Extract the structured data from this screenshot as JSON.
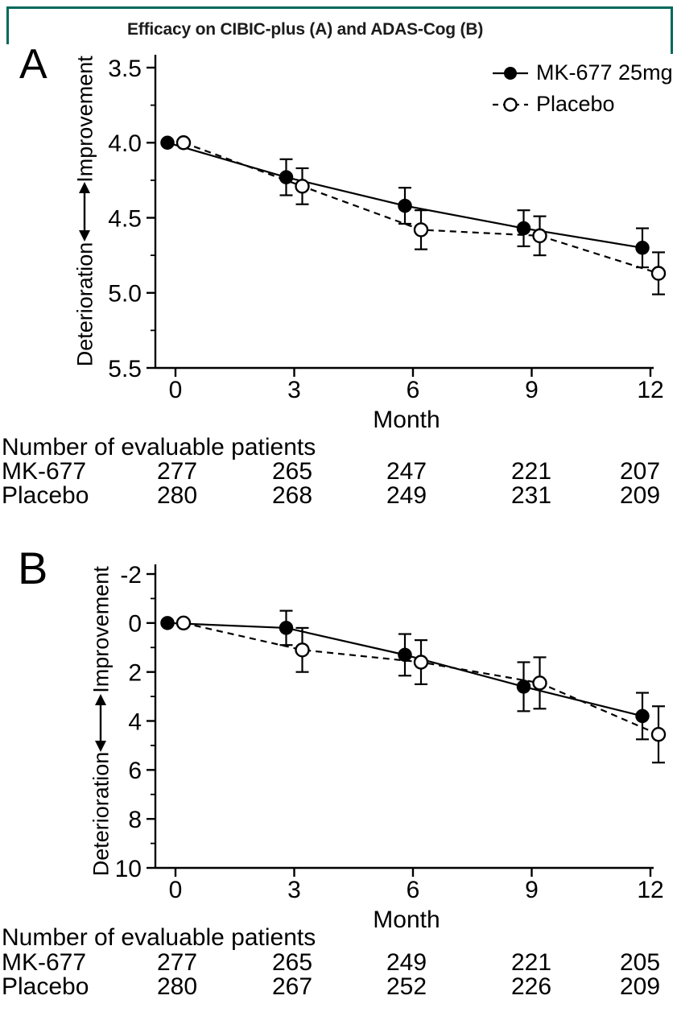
{
  "title": "Efficacy on CIBIC-plus (A) and ADAS-Cog (B)",
  "frame_color": "#00695a",
  "legend": {
    "items": [
      {
        "label": "MK-677 25mg",
        "marker": "filled",
        "line": "solid"
      },
      {
        "label": "Placebo",
        "marker": "open",
        "line": "dashed"
      }
    ]
  },
  "chart_data": [
    {
      "id": "A",
      "type": "line",
      "panel_label": "A",
      "xlabel": "Month",
      "ylabel_top": "Improvement",
      "ylabel_bottom": "Deterioration",
      "x": [
        0,
        3,
        6,
        9,
        12
      ],
      "y_axis_inverted": true,
      "ylim": [
        3.5,
        5.5
      ],
      "yticks": [
        3.5,
        4.0,
        4.5,
        5.0,
        5.5
      ],
      "ytick_labels": [
        "3.5",
        "4.0",
        "4.5",
        "5.0",
        "5.5"
      ],
      "yminor": [
        3.75,
        4.25,
        4.75,
        5.25
      ],
      "series": [
        {
          "name": "MK-677 25mg",
          "marker": "filled",
          "line": "solid",
          "values": [
            4.0,
            4.23,
            4.42,
            4.57,
            4.7
          ],
          "errors": [
            0,
            0.12,
            0.12,
            0.12,
            0.13
          ]
        },
        {
          "name": "Placebo",
          "marker": "open",
          "line": "dashed",
          "values": [
            4.0,
            4.29,
            4.58,
            4.62,
            4.87
          ],
          "errors": [
            0,
            0.12,
            0.13,
            0.13,
            0.14
          ]
        }
      ],
      "table": {
        "title": "Number of evaluable patients",
        "rows": [
          {
            "label": "MK-677",
            "values": [
              "277",
              "265",
              "247",
              "221",
              "207"
            ]
          },
          {
            "label": "Placebo",
            "values": [
              "280",
              "268",
              "249",
              "231",
              "209"
            ]
          }
        ]
      }
    },
    {
      "id": "B",
      "type": "line",
      "panel_label": "B",
      "xlabel": "Month",
      "ylabel_top": "Improvement",
      "ylabel_bottom": "Deterioration",
      "x": [
        0,
        3,
        6,
        9,
        12
      ],
      "y_axis_inverted": true,
      "ylim": [
        -2,
        10
      ],
      "yticks": [
        -2,
        0,
        2,
        4,
        6,
        8,
        10
      ],
      "ytick_labels": [
        "-2",
        "0",
        "2",
        "4",
        "6",
        "8",
        "10"
      ],
      "yminor": [
        -1,
        1,
        3,
        5,
        7,
        9
      ],
      "series": [
        {
          "name": "MK-677 25mg",
          "marker": "filled",
          "line": "solid",
          "values": [
            0,
            0.2,
            1.3,
            2.6,
            3.8
          ],
          "errors": [
            0,
            0.7,
            0.85,
            1.0,
            0.95
          ]
        },
        {
          "name": "Placebo",
          "marker": "open",
          "line": "dashed",
          "values": [
            0,
            1.1,
            1.6,
            2.45,
            4.55
          ],
          "errors": [
            0,
            0.9,
            0.9,
            1.05,
            1.15
          ]
        }
      ],
      "table": {
        "title": "Number of evaluable patients",
        "rows": [
          {
            "label": "MK-677",
            "values": [
              "277",
              "265",
              "249",
              "221",
              "205"
            ]
          },
          {
            "label": "Placebo",
            "values": [
              "280",
              "267",
              "252",
              "226",
              "209"
            ]
          }
        ]
      }
    }
  ]
}
